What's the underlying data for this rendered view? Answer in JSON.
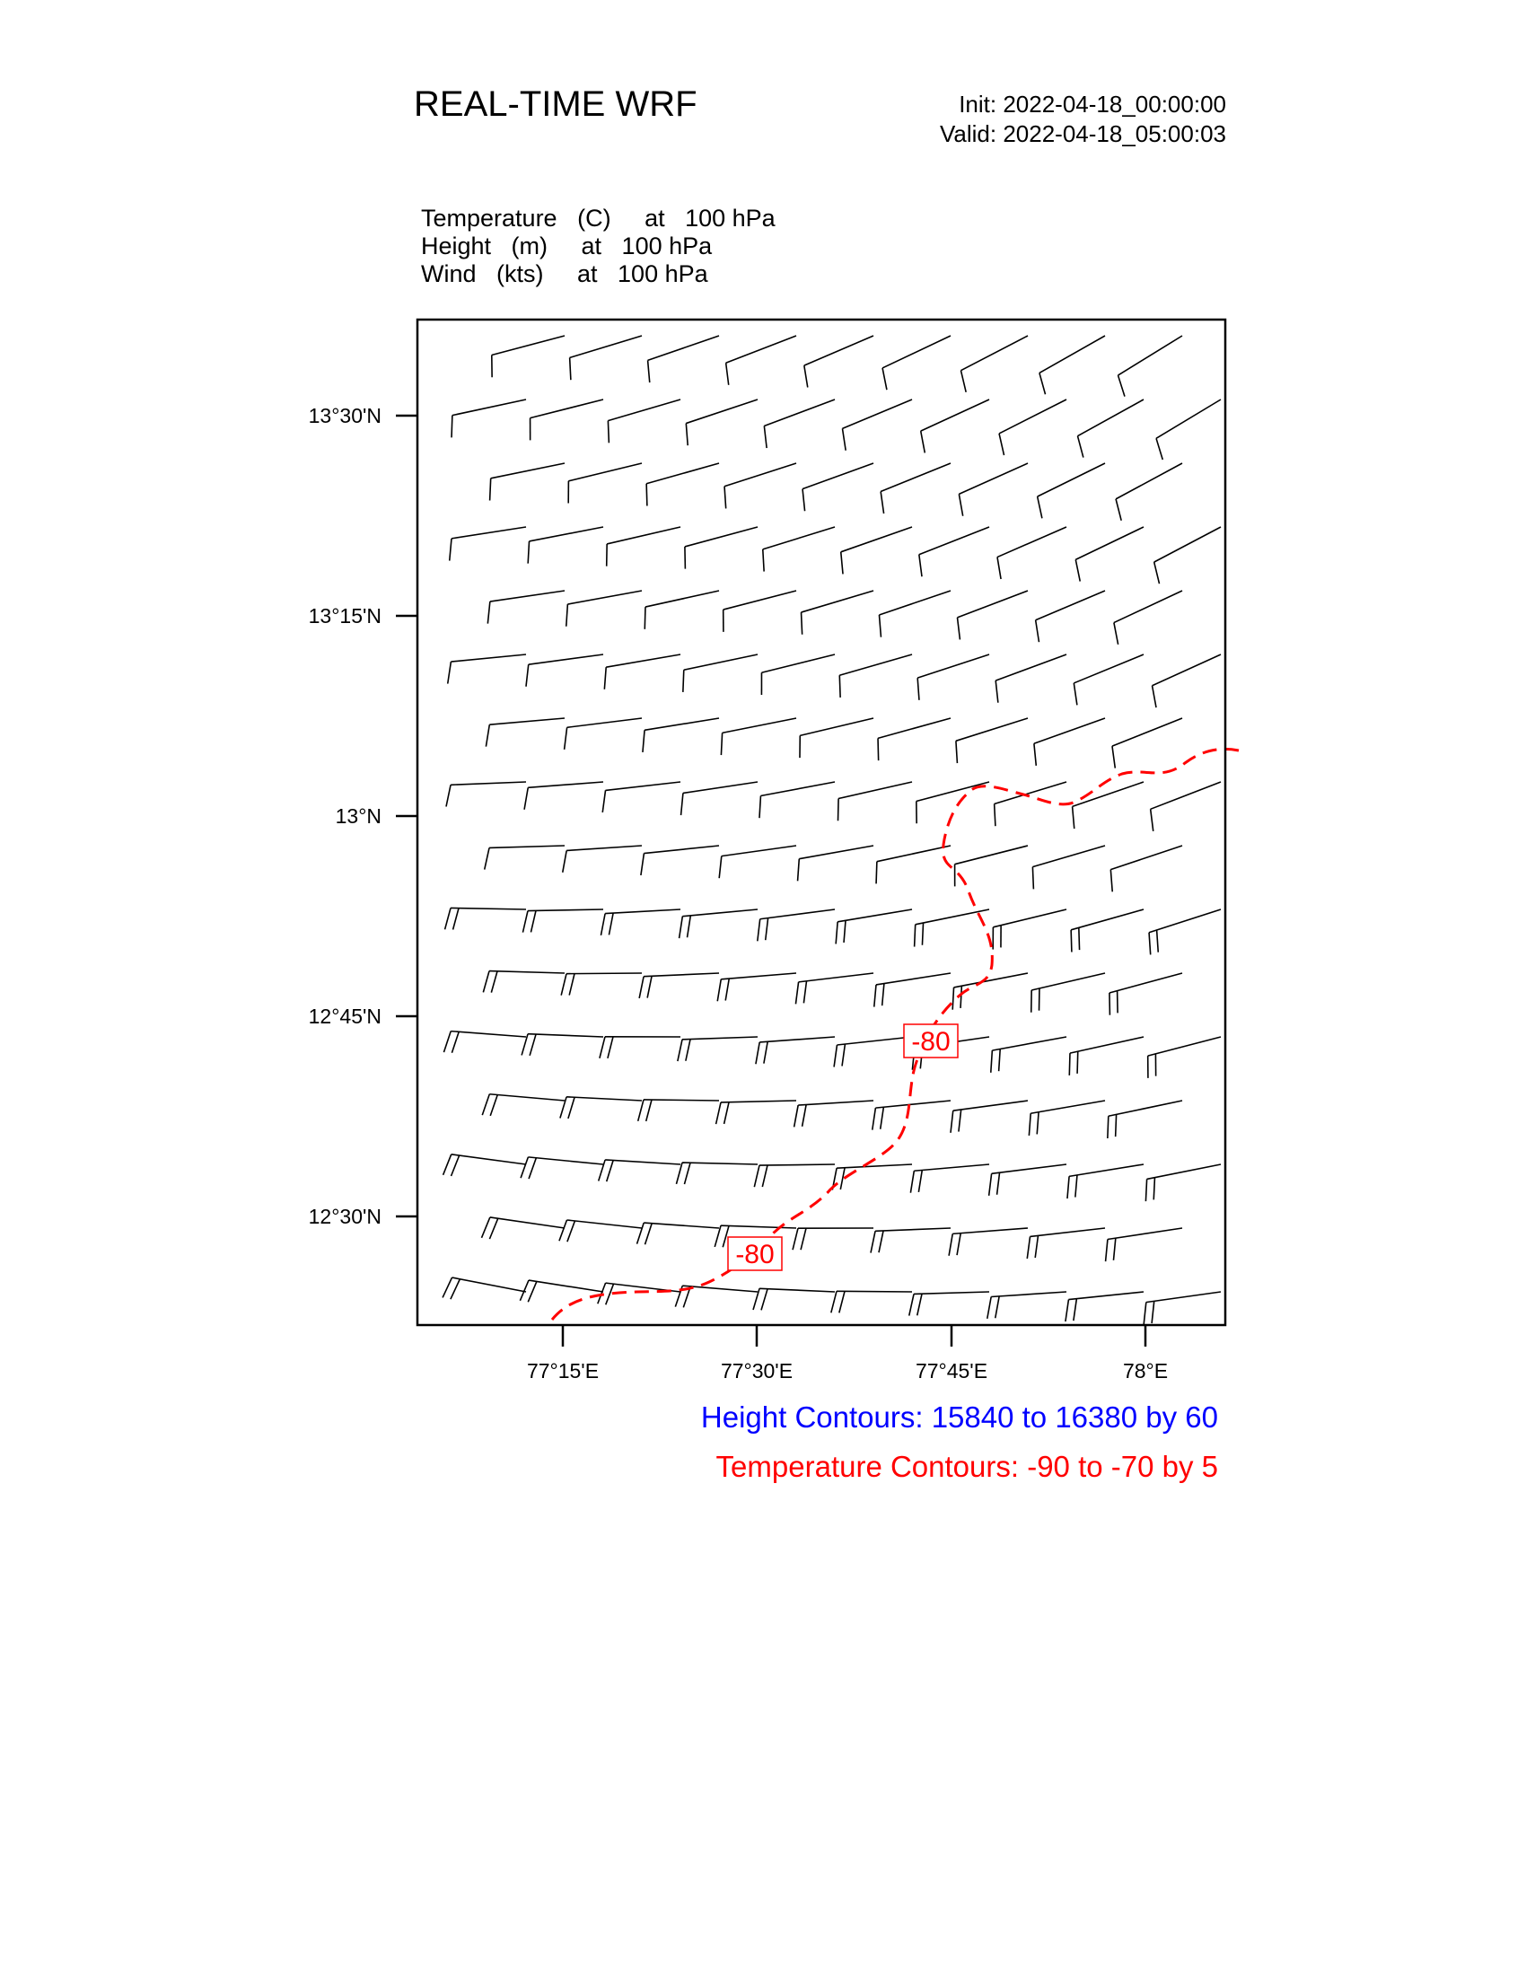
{
  "header": {
    "title": "REAL-TIME WRF",
    "init": "Init: 2022-04-18_00:00:00",
    "valid": "Valid: 2022-04-18_05:00:03"
  },
  "fields": {
    "line1": "Temperature   (C)     at   100 hPa",
    "line2": "Height   (m)     at   100 hPa",
    "line3": "Wind   (kts)     at   100 hPa"
  },
  "legend": {
    "height": "Height Contours: 15840 to 16380 by 60",
    "temperature": "Temperature Contours: -90 to -70 by 5",
    "height_color": "#0000ff",
    "temperature_color": "#ff0000"
  },
  "map": {
    "lat_ticks": [
      "13°30'N",
      "13°15'N",
      "13°N",
      "12°45'N",
      "12°30'N"
    ],
    "lon_ticks": [
      "77°15'E",
      "77°30'E",
      "77°45'E",
      "78°E"
    ],
    "temperature_contour": {
      "value": -80,
      "labels": [
        "-80",
        "-80"
      ],
      "style": "dashed",
      "color": "#ff0000"
    },
    "wind_barbs": {
      "color": "#000000",
      "note_direction": "north-westerly",
      "speed_kts_south": 20,
      "speed_kts_north": 10
    }
  }
}
